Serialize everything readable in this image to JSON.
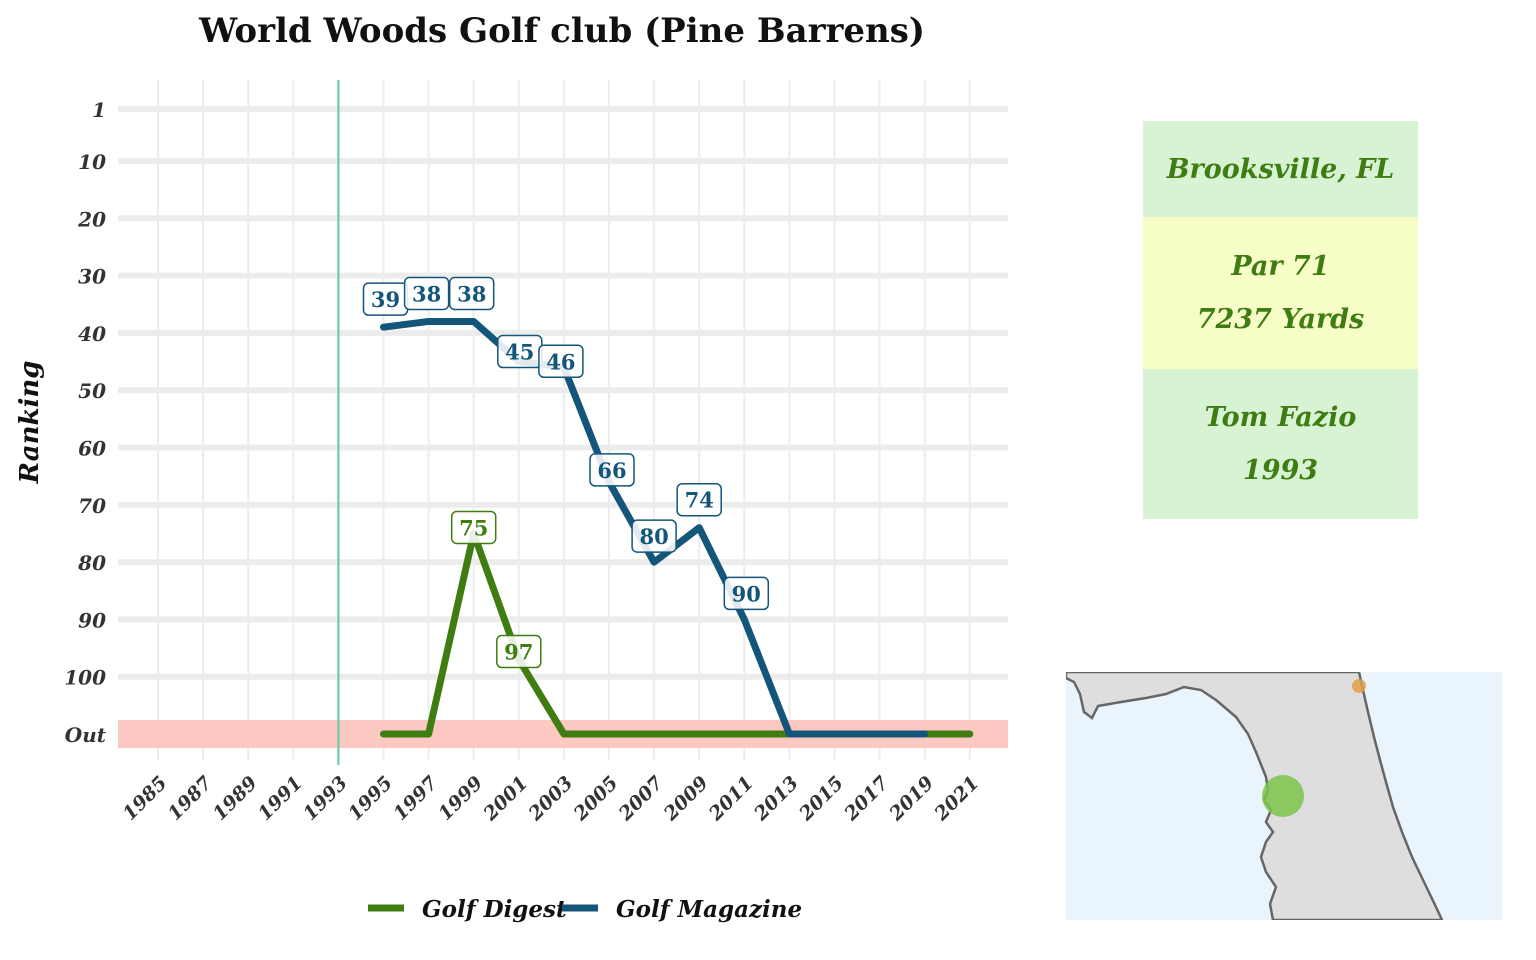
{
  "colors": {
    "golf_digest": "#3f7d12",
    "golf_magazine": "#13567a",
    "out_band": "#fcc8c2",
    "built_line": "#5ecba0",
    "card_green": "#d7f3d4",
    "card_yellow": "#f6fdc6",
    "card_text": "#3f7d12",
    "map_water": "#eaf4fd",
    "map_land": "#dedede",
    "map_marker_green": "#7cc54a",
    "map_marker_orange": "#e2a048"
  },
  "chart_data": {
    "type": "line",
    "title": "World Woods Golf club (Pine Barrens)",
    "ylabel": "Ranking",
    "xlabel": "",
    "x_ticks": [
      "1985",
      "1987",
      "1989",
      "1991",
      "1993",
      "1995",
      "1997",
      "1999",
      "2001",
      "2003",
      "2005",
      "2007",
      "2009",
      "2011",
      "2013",
      "2015",
      "2017",
      "2019",
      "2021"
    ],
    "y_ticks": [
      "1",
      "10",
      "20",
      "30",
      "40",
      "50",
      "60",
      "70",
      "80",
      "90",
      "100",
      "Out"
    ],
    "y_reversed": true,
    "grid": true,
    "legend_position": "bottom",
    "vertical_marker_year": 1993,
    "series": [
      {
        "name": "Golf Digest",
        "color_key": "golf_digest",
        "points": [
          {
            "x": 1995,
            "y": "Out"
          },
          {
            "x": 1997,
            "y": "Out"
          },
          {
            "x": 1999,
            "y": 75
          },
          {
            "x": 2001,
            "y": 97
          },
          {
            "x": 2003,
            "y": "Out"
          },
          {
            "x": 2005,
            "y": "Out"
          },
          {
            "x": 2007,
            "y": "Out"
          },
          {
            "x": 2009,
            "y": "Out"
          },
          {
            "x": 2011,
            "y": "Out"
          },
          {
            "x": 2013,
            "y": "Out"
          },
          {
            "x": 2015,
            "y": "Out"
          },
          {
            "x": 2017,
            "y": "Out"
          },
          {
            "x": 2019,
            "y": "Out"
          },
          {
            "x": 2021,
            "y": "Out"
          }
        ],
        "labeled": [
          1999,
          2001
        ]
      },
      {
        "name": "Golf Magazine",
        "color_key": "golf_magazine",
        "points": [
          {
            "x": 1995,
            "y": 39
          },
          {
            "x": 1997,
            "y": 38
          },
          {
            "x": 1999,
            "y": 38
          },
          {
            "x": 2001,
            "y": 45
          },
          {
            "x": 2003,
            "y": 46
          },
          {
            "x": 2005,
            "y": 66
          },
          {
            "x": 2007,
            "y": 80
          },
          {
            "x": 2009,
            "y": 74
          },
          {
            "x": 2011,
            "y": 90
          },
          {
            "x": 2013,
            "y": "Out"
          },
          {
            "x": 2015,
            "y": "Out"
          },
          {
            "x": 2017,
            "y": "Out"
          },
          {
            "x": 2019,
            "y": "Out"
          }
        ],
        "labeled": [
          1995,
          1997,
          1999,
          2001,
          2003,
          2005,
          2007,
          2009,
          2011
        ]
      }
    ]
  },
  "info_cards": [
    {
      "lines": [
        "Brooksville, FL"
      ],
      "color_key": "card_green"
    },
    {
      "lines": [
        "Par 71",
        "7237 Yards"
      ],
      "color_key": "card_yellow"
    },
    {
      "lines": [
        "Tom Fazio",
        "1993"
      ],
      "color_key": "card_green"
    }
  ],
  "map": {
    "markers": [
      {
        "name": "course-location",
        "color_key": "map_marker_green"
      },
      {
        "name": "other-location",
        "color_key": "map_marker_orange"
      }
    ]
  }
}
